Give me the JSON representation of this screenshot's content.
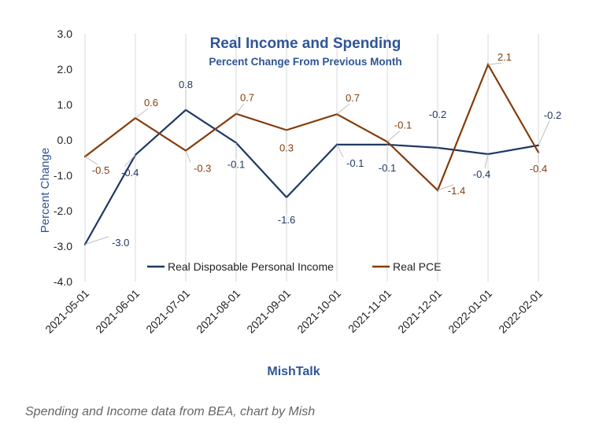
{
  "chart_data": {
    "type": "line",
    "title": "Real Income and Spending",
    "subtitle": "Percent Change From Previous Month",
    "ylabel": "Percent Change",
    "xlabel": "MishTalk",
    "ylim": [
      -4.0,
      3.0
    ],
    "yticks": [
      "3.0",
      "2.0",
      "1.0",
      "0.0",
      "-1.0",
      "-2.0",
      "-3.0",
      "-4.0"
    ],
    "grid": "vertical",
    "legend": "bottom",
    "x": [
      "2021-05-01",
      "2021-06-01",
      "2021-07-01",
      "2021-08-01",
      "2021-09-01",
      "2021-10-01",
      "2021-11-01",
      "2021-12-01",
      "2022-01-01",
      "2022-02-01"
    ],
    "series": [
      {
        "name": "Real Disposable Personal Income",
        "color": "#1f3864",
        "values": [
          -2.95,
          -0.42,
          0.85,
          -0.08,
          -1.62,
          -0.13,
          -0.13,
          -0.22,
          -0.4,
          -0.15
        ],
        "labels": [
          "-3.0",
          "-0.4",
          "0.8",
          "-0.1",
          "-1.6",
          "-0.1",
          "-0.1",
          "-0.2",
          "-0.4",
          "-0.2"
        ]
      },
      {
        "name": "Real PCE",
        "color": "#843c0c",
        "values": [
          -0.47,
          0.62,
          -0.3,
          0.74,
          0.28,
          0.73,
          -0.05,
          -1.42,
          2.13,
          -0.35
        ],
        "labels": [
          "-0.5",
          "0.6",
          "-0.3",
          "0.7",
          "0.3",
          "0.7",
          "-0.1",
          "-1.4",
          "2.1",
          "-0.4"
        ]
      }
    ]
  },
  "caption": "Spending and Income data from BEA, chart by Mish"
}
